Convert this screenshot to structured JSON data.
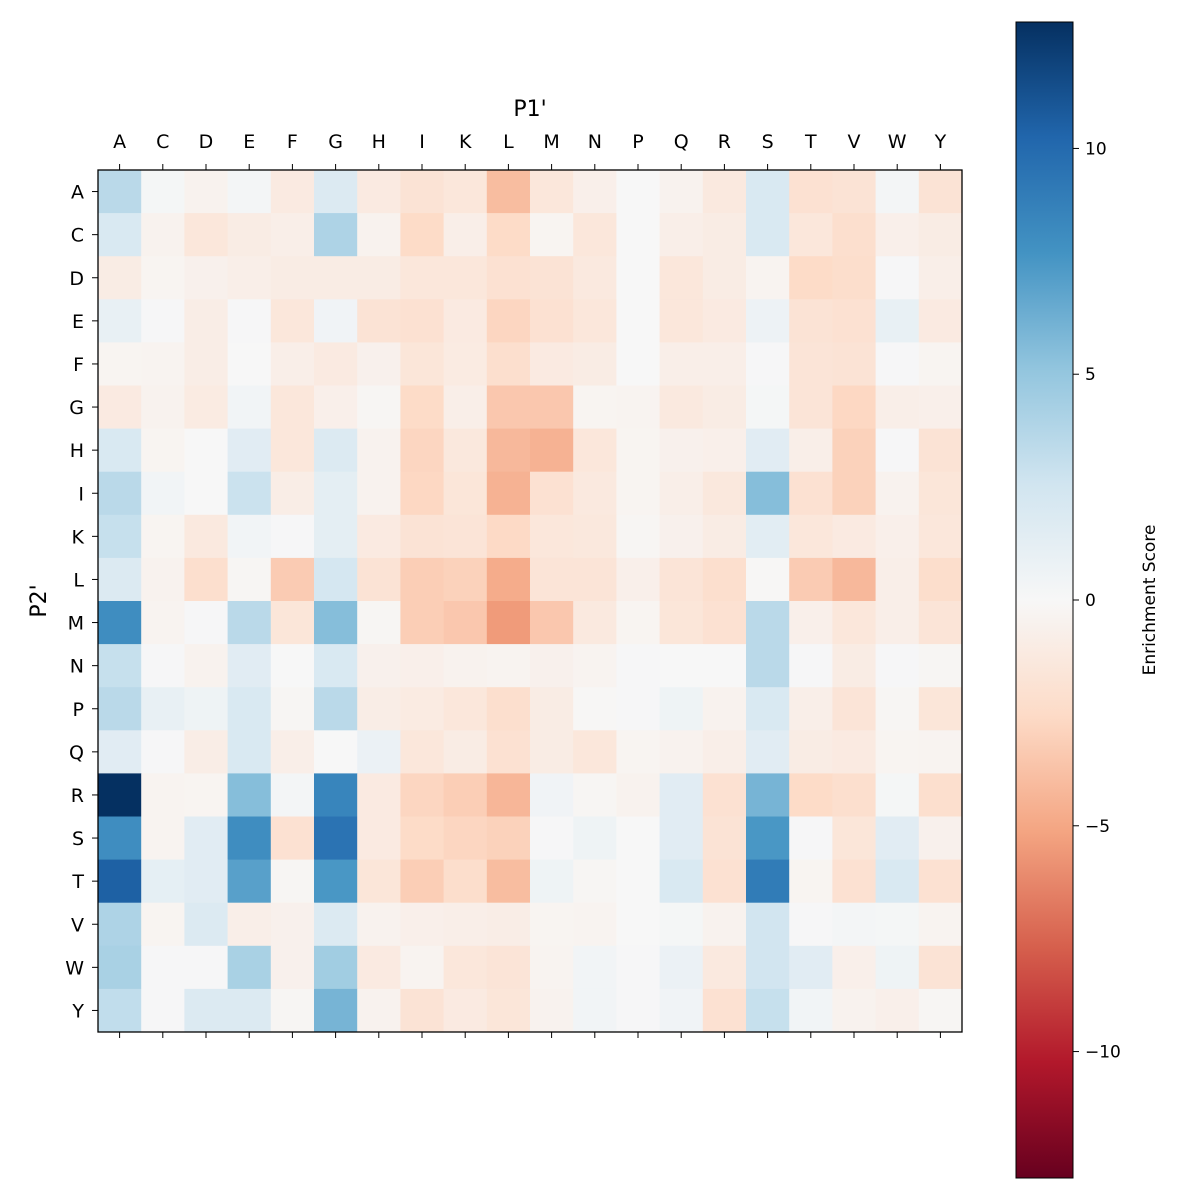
{
  "chart_data": {
    "type": "heatmap",
    "xlabel": "P1'",
    "ylabel": "P2'",
    "colorbar_label": "Enrichment Score",
    "colormap": "RdBu",
    "vlim": [
      -12.8,
      12.8
    ],
    "colorbar_ticks": [
      10,
      5,
      0,
      -5,
      -10
    ],
    "colorbar_tick_labels": [
      "10",
      "5",
      "0",
      "−5",
      "−10"
    ],
    "x_categories": [
      "A",
      "C",
      "D",
      "E",
      "F",
      "G",
      "H",
      "I",
      "K",
      "L",
      "M",
      "N",
      "P",
      "Q",
      "R",
      "S",
      "T",
      "V",
      "W",
      "Y"
    ],
    "y_categories": [
      "A",
      "C",
      "D",
      "E",
      "F",
      "G",
      "H",
      "I",
      "K",
      "L",
      "M",
      "N",
      "P",
      "Q",
      "R",
      "S",
      "T",
      "V",
      "W",
      "Y"
    ],
    "values": [
      [
        3.5,
        0.2,
        -0.5,
        0.3,
        -1.2,
        1.8,
        -1.2,
        -1.8,
        -1.5,
        -4,
        -1.5,
        -0.7,
        0,
        -0.5,
        -1.3,
        2,
        -2,
        -1.8,
        0.3,
        -1.8
      ],
      [
        2,
        -0.5,
        -1.5,
        -1,
        -0.8,
        4,
        -0.5,
        -2.5,
        -0.8,
        -2.5,
        -0.3,
        -1.5,
        0,
        -0.8,
        -1,
        2,
        -1.5,
        -2.2,
        -0.7,
        -1
      ],
      [
        -1,
        -0.3,
        -0.6,
        -0.8,
        -1,
        -1,
        -1,
        -1.5,
        -1.5,
        -2,
        -1.8,
        -1.3,
        0,
        -1.5,
        -1,
        -0.4,
        -2.5,
        -2.3,
        0.1,
        -0.8
      ],
      [
        1,
        0.1,
        -0.9,
        0.1,
        -1.5,
        0.5,
        -1.8,
        -2,
        -1.2,
        -2.8,
        -2,
        -1.5,
        0,
        -1.5,
        -1.2,
        0.7,
        -1.8,
        -2,
        1,
        -1.2
      ],
      [
        -0.3,
        -0.4,
        -0.9,
        0,
        -0.8,
        -1.2,
        -0.6,
        -1.6,
        -1.1,
        -2.2,
        -1.2,
        -1,
        0,
        -0.8,
        -0.8,
        0.1,
        -1.7,
        -1.8,
        0.1,
        -0.3
      ],
      [
        -1.2,
        -0.5,
        -1.1,
        0.4,
        -1.5,
        -0.7,
        -0.2,
        -2.5,
        -0.8,
        -3.5,
        -3.5,
        -0.3,
        -0.4,
        -1.3,
        -1,
        0.2,
        -1.7,
        -2.7,
        -0.8,
        -0.7
      ],
      [
        2,
        -0.3,
        0,
        1.5,
        -1.5,
        1.8,
        -0.5,
        -2.8,
        -1.4,
        -4.2,
        -4.5,
        -1.5,
        -0.3,
        -0.6,
        -0.7,
        1.5,
        -0.8,
        -3,
        0.1,
        -1.8
      ],
      [
        3.5,
        0.4,
        0,
        2.8,
        -0.9,
        1.3,
        -0.5,
        -2.7,
        -1.6,
        -4.5,
        -2,
        -1.3,
        -0.3,
        -0.8,
        -1.4,
        5.5,
        -2,
        -3,
        -0.5,
        -1.6
      ],
      [
        3,
        -0.3,
        -1.3,
        0.4,
        0.1,
        1.3,
        -1.2,
        -1.8,
        -1.7,
        -2.6,
        -1.5,
        -1.4,
        -0.2,
        -0.6,
        -1,
        1.4,
        -1.5,
        -1.2,
        -0.7,
        -1.5
      ],
      [
        1.8,
        -0.5,
        -2.2,
        -0.2,
        -3.3,
        2.3,
        -1.8,
        -3.2,
        -3,
        -4.8,
        -1.7,
        -1.7,
        -0.7,
        -1.7,
        -2.2,
        -0.1,
        -3.3,
        -4.2,
        -0.8,
        -2.3
      ],
      [
        8,
        -0.4,
        0.1,
        3.5,
        -1.6,
        5.5,
        -0.2,
        -3.2,
        -3.5,
        -5.5,
        -3.5,
        -1.3,
        -0.3,
        -1.6,
        -2,
        3.5,
        -0.7,
        -1.5,
        -0.8,
        -1.7
      ],
      [
        3,
        0.1,
        -0.5,
        1.5,
        0,
        2,
        -0.6,
        -0.7,
        -0.5,
        -0.4,
        -0.6,
        -0.4,
        0.1,
        0,
        0,
        3.5,
        0.1,
        -1,
        0.1,
        -0.2
      ],
      [
        3.5,
        1,
        0.6,
        2,
        -0.2,
        3.5,
        -0.9,
        -1.1,
        -1.5,
        -2.2,
        -1,
        -0.1,
        0.1,
        0.6,
        -0.5,
        2,
        -0.8,
        -1.7,
        -0.2,
        -1.6
      ],
      [
        1.5,
        0.1,
        -0.9,
        2,
        -0.8,
        0,
        0.8,
        -1.5,
        -1,
        -2,
        -1,
        -1.5,
        -0.3,
        -0.5,
        -0.8,
        1.5,
        -1,
        -1.2,
        -0.3,
        -0.4
      ],
      [
        12.8,
        -0.4,
        -0.3,
        5.5,
        0.3,
        8.5,
        -1.2,
        -2.8,
        -3.2,
        -4.3,
        0.5,
        -0.2,
        -0.5,
        1.5,
        -2,
        6,
        -2.5,
        -2.2,
        0.2,
        -2.2
      ],
      [
        8,
        -0.4,
        1.5,
        8,
        -2,
        9.5,
        -1.2,
        -2.5,
        -2.8,
        -3,
        0.1,
        0.6,
        0,
        1.5,
        -1.8,
        7.5,
        0.1,
        -1.6,
        1.5,
        -0.6
      ],
      [
        10.5,
        1.2,
        1.5,
        7,
        -0.2,
        7.5,
        -1.6,
        -3.2,
        -2.3,
        -4,
        0.6,
        -0.2,
        0,
        2,
        -2,
        9,
        -0.3,
        -2,
        2,
        -2
      ],
      [
        4,
        -0.3,
        1.8,
        -0.8,
        -0.6,
        1.8,
        -0.5,
        -0.7,
        -0.8,
        -0.9,
        -0.3,
        -0.4,
        0,
        0.2,
        -0.5,
        2.5,
        0.1,
        0.3,
        0.2,
        -0.4
      ],
      [
        4.2,
        0.1,
        0.1,
        4.2,
        -0.6,
        4.5,
        -1.2,
        -0.4,
        -1.5,
        -1.7,
        -0.4,
        0.4,
        0.1,
        0.8,
        -1.3,
        2.5,
        1.5,
        -0.7,
        0.6,
        -1.8
      ],
      [
        3.2,
        0.1,
        1.8,
        1.8,
        -0.2,
        6,
        -0.5,
        -1.8,
        -1.2,
        -1.6,
        -0.5,
        0.4,
        0.1,
        0.5,
        -2,
        3,
        0.4,
        -0.5,
        -0.7,
        -0.2
      ]
    ]
  }
}
